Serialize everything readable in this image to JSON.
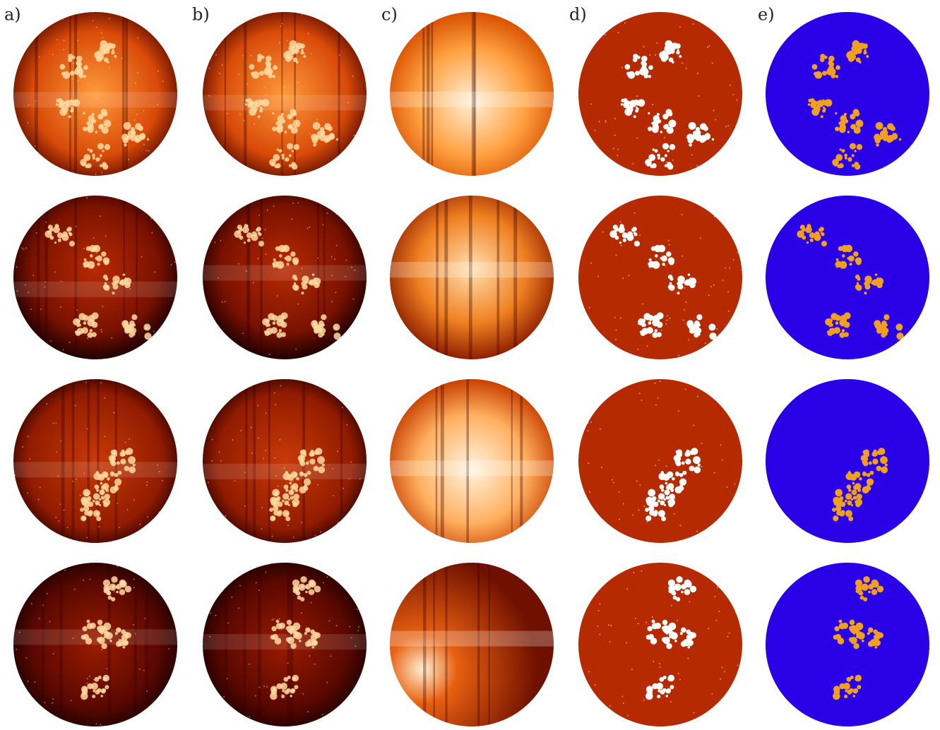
{
  "figure": {
    "panel_labels": [
      "a)",
      "b)",
      "c)",
      "d)",
      "e)"
    ]
  }
}
